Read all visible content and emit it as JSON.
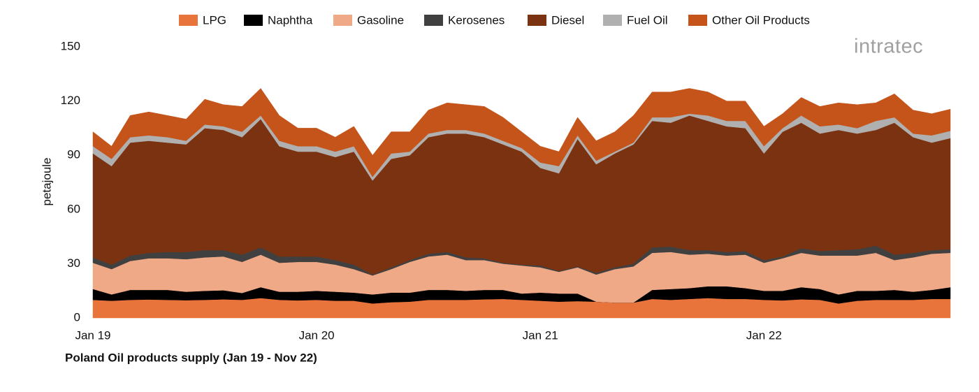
{
  "chart_data": {
    "type": "stacked-area",
    "title": "Poland Oil products supply (Jan 19 - Nov 22)",
    "y_label": "petajoule",
    "logo": "intratec",
    "categories": [
      "Jan 19",
      null,
      null,
      null,
      null,
      null,
      null,
      null,
      null,
      null,
      null,
      null,
      "Jan 20",
      null,
      null,
      null,
      null,
      null,
      null,
      null,
      null,
      null,
      null,
      null,
      "Jan 21",
      null,
      null,
      null,
      null,
      null,
      null,
      null,
      null,
      null,
      null,
      null,
      "Jan 22",
      null,
      null,
      null,
      null,
      null,
      null,
      null,
      null,
      null,
      null
    ],
    "ylim": [
      0,
      150
    ],
    "yticks": [
      0,
      30,
      60,
      90,
      120,
      150
    ],
    "grid": false,
    "legend": "top",
    "series": [
      {
        "name": "LPG",
        "color": "#e8743b",
        "values": [
          10,
          9.5,
          10,
          10.2,
          10,
          9.8,
          10,
          10.3,
          10,
          11,
          10,
          9.7,
          10,
          9.5,
          9.5,
          8,
          8.7,
          9,
          10,
          10,
          10,
          10.3,
          10.5,
          10,
          9.5,
          9,
          9.3,
          9,
          8.5,
          8.5,
          10.5,
          10,
          10.5,
          11,
          10.5,
          10.5,
          10,
          9.7,
          10.3,
          10,
          8,
          9.5,
          10,
          10,
          10,
          10.5,
          10.5
        ]
      },
      {
        "name": "Naphtha",
        "color": "#000000",
        "values": [
          6,
          3.5,
          5.5,
          5.3,
          5.5,
          4.7,
          5,
          5,
          3.8,
          6,
          4.5,
          4.8,
          5,
          5,
          4.5,
          5,
          5.3,
          5,
          5.5,
          5.5,
          5,
          5.2,
          5,
          3.5,
          4.5,
          4.5,
          4.2,
          0,
          0,
          0,
          5,
          6,
          6,
          6.5,
          7,
          6,
          5,
          5.3,
          6.7,
          6,
          5,
          5.5,
          5,
          5.5,
          4.5,
          5,
          6.5
        ]
      },
      {
        "name": "Gasoline",
        "color": "#f0a986",
        "values": [
          14.5,
          14,
          16,
          17.5,
          17.5,
          18,
          18.5,
          18.7,
          17.2,
          18,
          16,
          16.5,
          16,
          15,
          13,
          10.5,
          13,
          17,
          18.5,
          19.5,
          17,
          16.5,
          14.5,
          15.5,
          14,
          12,
          14.5,
          15,
          18.5,
          20,
          20.5,
          20.5,
          18.5,
          18,
          17,
          18.5,
          15.5,
          18,
          19,
          18.5,
          21.5,
          19.5,
          21,
          16.5,
          19,
          20,
          19
        ]
      },
      {
        "name": "Kerosenes",
        "color": "#404040",
        "values": [
          3,
          2.5,
          3,
          3,
          3.5,
          4,
          4,
          3.5,
          4,
          4,
          3.5,
          3,
          3,
          2.5,
          2.5,
          0.5,
          1,
          1,
          1.5,
          1.5,
          1.5,
          1,
          0.5,
          0.5,
          1,
          0.5,
          0.5,
          1,
          1,
          1.5,
          3,
          3,
          2.5,
          2,
          2,
          2,
          1.5,
          1,
          2.5,
          2.5,
          3,
          3.5,
          4,
          3,
          2.5,
          2,
          2
        ]
      },
      {
        "name": "Diesel",
        "color": "#7b3210",
        "values": [
          57.5,
          54.5,
          62.5,
          62,
          60.5,
          59.5,
          67.5,
          66.5,
          65,
          71,
          61,
          58,
          58,
          57,
          62.5,
          52,
          60,
          58,
          64.5,
          65.5,
          68.5,
          67,
          65.5,
          62.5,
          54,
          54,
          70.5,
          60,
          63,
          66,
          70,
          68.5,
          74.5,
          71.5,
          69.5,
          68,
          59,
          69,
          69.5,
          65,
          66.5,
          64,
          64,
          73,
          64,
          59.5,
          61.5
        ]
      },
      {
        "name": "Fuel Oil",
        "color": "#b0b0b0",
        "values": [
          4,
          4,
          3,
          3,
          3,
          2,
          2,
          2,
          3,
          2,
          3,
          3,
          3,
          3,
          3,
          2,
          3,
          2,
          2,
          2,
          2,
          2,
          2,
          2,
          3,
          4,
          2,
          2,
          1,
          1,
          2,
          3,
          1,
          3,
          3,
          4,
          4,
          2,
          4,
          4,
          3,
          3,
          5,
          3,
          2,
          4,
          4
        ]
      },
      {
        "name": "Other Oil Products",
        "color": "#c4541a",
        "values": [
          8,
          7,
          12,
          13,
          12,
          12,
          14,
          12,
          14,
          15,
          14,
          10,
          10,
          8,
          11,
          12,
          12,
          11,
          13,
          15,
          14,
          15,
          13,
          9,
          9,
          8,
          10,
          11,
          11,
          15,
          14,
          14,
          14,
          13,
          11,
          11,
          11,
          8,
          10,
          11,
          12,
          13,
          10,
          13,
          13,
          12,
          12
        ]
      }
    ]
  }
}
